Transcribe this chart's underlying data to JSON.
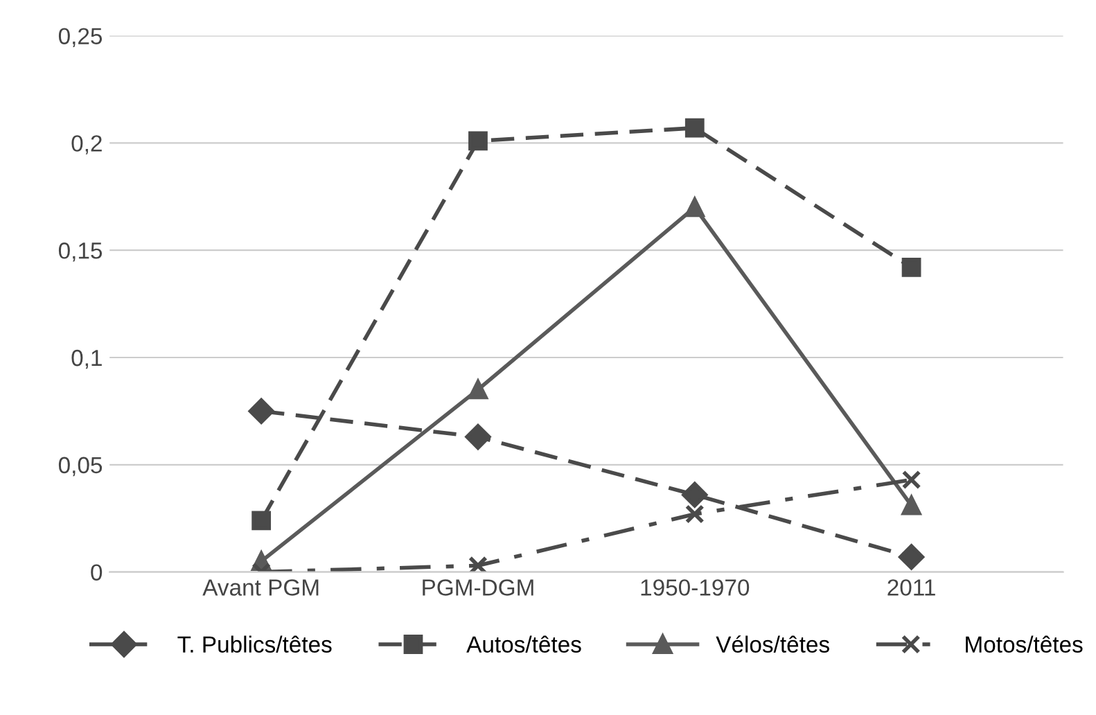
{
  "chart_data": {
    "type": "line",
    "categories": [
      "Avant PGM",
      "PGM-DGM",
      "1950-1970",
      "2011"
    ],
    "ylim": [
      0,
      0.25
    ],
    "yticks": [
      {
        "value": 0,
        "label": "0"
      },
      {
        "value": 0.05,
        "label": "0,05"
      },
      {
        "value": 0.1,
        "label": "0,1"
      },
      {
        "value": 0.15,
        "label": "0,15"
      },
      {
        "value": 0.2,
        "label": "0,2"
      },
      {
        "value": 0.25,
        "label": "0,25"
      }
    ],
    "grid": "y",
    "legend": "bottom",
    "series": [
      {
        "name": "T. Publics/têtes",
        "color": "#4a4a4a",
        "marker": "diamond",
        "line_style": "dashed",
        "values": [
          0.075,
          0.063,
          0.036,
          0.007
        ]
      },
      {
        "name": "Autos/têtes",
        "color": "#4a4a4a",
        "marker": "square",
        "line_style": "dashed",
        "values": [
          0.024,
          0.201,
          0.207,
          0.142
        ]
      },
      {
        "name": "Vélos/têtes",
        "color": "#5a5a5a",
        "marker": "triangle",
        "line_style": "solid",
        "values": [
          0.005,
          0.085,
          0.17,
          0.031
        ]
      },
      {
        "name": "Motos/têtes",
        "color": "#4a4a4a",
        "marker": "cross",
        "line_style": "dashdot",
        "values": [
          0,
          0.003,
          0.027,
          0.043
        ]
      }
    ]
  }
}
